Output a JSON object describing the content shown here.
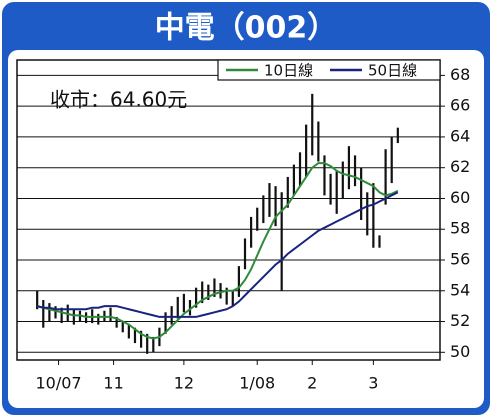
{
  "chart_data": {
    "type": "stock",
    "title": "中電（002）",
    "annotation": "收市：64.60元",
    "bar_color": "#111111",
    "x": [
      0,
      1,
      2,
      3,
      4,
      5,
      6,
      7,
      8,
      9,
      10,
      11,
      12,
      13,
      14,
      15,
      16,
      17,
      18,
      19,
      20,
      21,
      22,
      23,
      24,
      25,
      26,
      27,
      28,
      29,
      30,
      31,
      32,
      33,
      34,
      35,
      36,
      37,
      38,
      39,
      40,
      41,
      42,
      43,
      44,
      45,
      46,
      47,
      48,
      49,
      50,
      51,
      52,
      53,
      54,
      55,
      56,
      57,
      58,
      59
    ],
    "high": [
      54.0,
      53.4,
      53.2,
      53.0,
      52.9,
      53.1,
      52.8,
      52.7,
      52.6,
      52.8,
      52.5,
      52.7,
      52.9,
      52.3,
      52.0,
      51.8,
      51.6,
      51.4,
      51.2,
      51.0,
      51.6,
      52.6,
      53.0,
      53.6,
      53.8,
      53.4,
      54.2,
      54.6,
      54.4,
      54.8,
      54.5,
      54.2,
      54.0,
      55.6,
      57.4,
      58.8,
      59.4,
      60.2,
      61.0,
      60.8,
      60.4,
      61.4,
      62.2,
      63.0,
      64.8,
      66.8,
      65.0,
      62.8,
      61.6,
      61.8,
      62.4,
      63.4,
      62.8,
      62.0,
      60.4,
      61.0,
      57.6,
      63.2,
      64.0,
      64.6
    ],
    "low": [
      52.8,
      51.6,
      52.0,
      52.2,
      51.9,
      52.0,
      51.8,
      52.0,
      51.9,
      51.9,
      51.8,
      52.0,
      52.0,
      51.6,
      51.3,
      50.9,
      50.6,
      50.3,
      49.9,
      50.0,
      50.4,
      51.2,
      51.8,
      52.2,
      52.6,
      52.4,
      52.9,
      53.2,
      53.4,
      53.6,
      53.5,
      53.1,
      53.0,
      53.6,
      55.4,
      56.8,
      57.9,
      58.4,
      58.8,
      58.2,
      54.0,
      59.4,
      60.2,
      60.8,
      61.4,
      62.8,
      62.4,
      60.2,
      59.6,
      59.0,
      60.0,
      60.6,
      60.8,
      58.6,
      57.6,
      56.8,
      56.8,
      59.6,
      61.0,
      63.6
    ],
    "series": [
      {
        "name": "10日線",
        "color": "#2e8b3a",
        "values": [
          53.0,
          52.9,
          52.8,
          52.7,
          52.6,
          52.5,
          52.4,
          52.4,
          52.3,
          52.3,
          52.3,
          52.3,
          52.3,
          52.2,
          52.0,
          51.8,
          51.5,
          51.2,
          51.0,
          50.9,
          51.0,
          51.3,
          51.7,
          52.1,
          52.5,
          52.8,
          53.1,
          53.4,
          53.6,
          53.8,
          53.9,
          54.0,
          54.0,
          54.2,
          54.7,
          55.4,
          56.3,
          57.2,
          58.0,
          58.8,
          59.2,
          59.6,
          60.2,
          60.8,
          61.4,
          62.0,
          62.3,
          62.3,
          62.1,
          61.8,
          61.6,
          61.5,
          61.4,
          61.2,
          61.0,
          60.8,
          60.4,
          60.2,
          60.3,
          60.5
        ]
      },
      {
        "name": "50日線",
        "color": "#1a237e",
        "values": [
          53.0,
          52.9,
          52.9,
          52.8,
          52.8,
          52.8,
          52.8,
          52.8,
          52.8,
          52.9,
          52.9,
          53.0,
          53.0,
          53.0,
          52.9,
          52.8,
          52.7,
          52.6,
          52.5,
          52.4,
          52.3,
          52.3,
          52.3,
          52.3,
          52.3,
          52.3,
          52.3,
          52.4,
          52.5,
          52.6,
          52.7,
          52.8,
          53.0,
          53.3,
          53.7,
          54.1,
          54.5,
          54.9,
          55.3,
          55.7,
          56.0,
          56.4,
          56.7,
          57.0,
          57.3,
          57.6,
          57.9,
          58.1,
          58.3,
          58.5,
          58.7,
          58.9,
          59.1,
          59.3,
          59.5,
          59.6,
          59.8,
          60.0,
          60.2,
          60.4
        ]
      }
    ],
    "xlim": [
      -3.3,
      65.9
    ],
    "xticks": [
      {
        "value": 3.5,
        "label": "10/07"
      },
      {
        "value": 12.5,
        "label": "11"
      },
      {
        "value": 24,
        "label": "12"
      },
      {
        "value": 36,
        "label": "1/08"
      },
      {
        "value": 45,
        "label": "2"
      },
      {
        "value": 55,
        "label": "3"
      }
    ],
    "ylim": [
      49.5,
      69
    ],
    "yticks": [
      50,
      52,
      54,
      56,
      58,
      60,
      62,
      64,
      66,
      68
    ],
    "grid": true
  }
}
